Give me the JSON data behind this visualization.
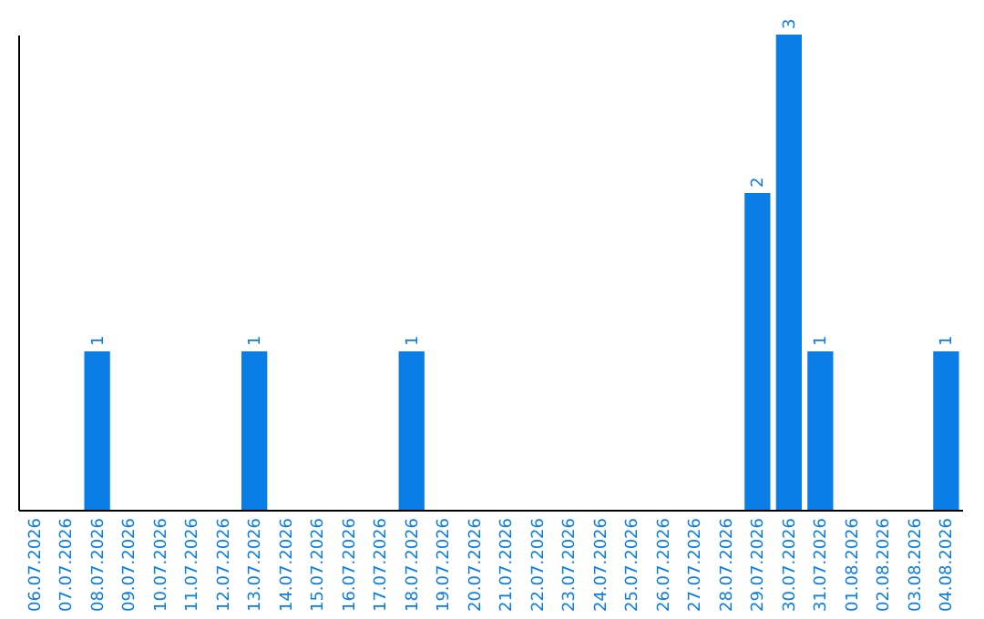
{
  "chart_data": {
    "type": "bar",
    "categories": [
      "06.07.2026",
      "07.07.2026",
      "08.07.2026",
      "09.07.2026",
      "10.07.2026",
      "11.07.2026",
      "12.07.2026",
      "13.07.2026",
      "14.07.2026",
      "15.07.2026",
      "16.07.2026",
      "17.07.2026",
      "18.07.2026",
      "19.07.2026",
      "20.07.2026",
      "21.07.2026",
      "22.07.2026",
      "23.07.2026",
      "24.07.2026",
      "25.07.2026",
      "26.07.2026",
      "27.07.2026",
      "28.07.2026",
      "29.07.2026",
      "30.07.2026",
      "31.07.2026",
      "01.08.2026",
      "02.08.2026",
      "03.08.2026",
      "04.08.2026"
    ],
    "values": [
      0,
      0,
      1,
      0,
      0,
      0,
      0,
      1,
      0,
      0,
      0,
      0,
      1,
      0,
      0,
      0,
      0,
      0,
      0,
      0,
      0,
      0,
      0,
      2,
      3,
      1,
      0,
      0,
      0,
      1
    ],
    "value_labels": [
      null,
      null,
      "1",
      null,
      null,
      null,
      null,
      "1",
      null,
      null,
      null,
      null,
      "1",
      null,
      null,
      null,
      null,
      null,
      null,
      null,
      null,
      null,
      null,
      "2",
      "3",
      "1",
      null,
      null,
      null,
      "1"
    ],
    "color": "#0a7ee6",
    "ylim": [
      0,
      3
    ],
    "tick_labels": "x",
    "grid": false
  }
}
